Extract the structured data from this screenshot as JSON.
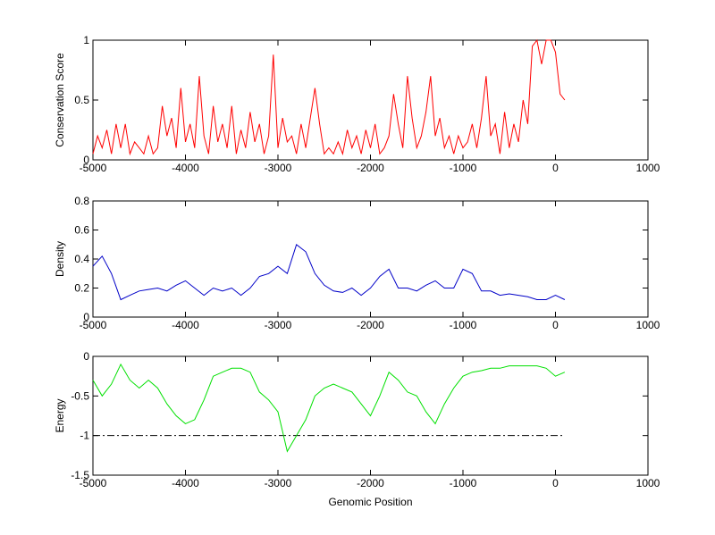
{
  "chart_data": [
    {
      "type": "line",
      "ylabel": "Conservation Score",
      "color": "#ff0000",
      "x": [
        -5000,
        -4950,
        -4900,
        -4850,
        -4800,
        -4750,
        -4700,
        -4650,
        -4600,
        -4550,
        -4500,
        -4450,
        -4400,
        -4350,
        -4300,
        -4250,
        -4200,
        -4150,
        -4100,
        -4050,
        -4000,
        -3950,
        -3900,
        -3850,
        -3800,
        -3750,
        -3700,
        -3650,
        -3600,
        -3550,
        -3500,
        -3450,
        -3400,
        -3350,
        -3300,
        -3250,
        -3200,
        -3150,
        -3100,
        -3050,
        -3000,
        -2950,
        -2900,
        -2850,
        -2800,
        -2750,
        -2700,
        -2650,
        -2600,
        -2550,
        -2500,
        -2450,
        -2400,
        -2350,
        -2300,
        -2250,
        -2200,
        -2150,
        -2100,
        -2050,
        -2000,
        -1950,
        -1900,
        -1850,
        -1800,
        -1750,
        -1700,
        -1650,
        -1600,
        -1550,
        -1500,
        -1450,
        -1400,
        -1350,
        -1300,
        -1250,
        -1200,
        -1150,
        -1100,
        -1050,
        -1000,
        -950,
        -900,
        -850,
        -800,
        -750,
        -700,
        -650,
        -600,
        -550,
        -500,
        -450,
        -400,
        -350,
        -300,
        -250,
        -200,
        -150,
        -100,
        -50,
        0,
        50,
        100
      ],
      "values": [
        0.05,
        0.2,
        0.1,
        0.25,
        0.05,
        0.3,
        0.1,
        0.3,
        0.05,
        0.15,
        0.1,
        0.05,
        0.2,
        0.05,
        0.1,
        0.45,
        0.2,
        0.35,
        0.1,
        0.6,
        0.15,
        0.3,
        0.1,
        0.7,
        0.2,
        0.05,
        0.45,
        0.15,
        0.3,
        0.1,
        0.45,
        0.05,
        0.25,
        0.1,
        0.4,
        0.15,
        0.3,
        0.05,
        0.2,
        0.88,
        0.1,
        0.35,
        0.15,
        0.2,
        0.05,
        0.3,
        0.1,
        0.35,
        0.6,
        0.3,
        0.05,
        0.1,
        0.05,
        0.15,
        0.05,
        0.25,
        0.1,
        0.2,
        0.05,
        0.25,
        0.1,
        0.3,
        0.05,
        0.1,
        0.2,
        0.55,
        0.3,
        0.1,
        0.7,
        0.35,
        0.1,
        0.2,
        0.4,
        0.7,
        0.2,
        0.35,
        0.1,
        0.2,
        0.05,
        0.2,
        0.1,
        0.15,
        0.3,
        0.1,
        0.35,
        0.7,
        0.2,
        0.3,
        0.05,
        0.4,
        0.1,
        0.3,
        0.15,
        0.5,
        0.3,
        0.95,
        1,
        0.8,
        1,
        1,
        0.9,
        0.55,
        0.5
      ],
      "xlim": [
        -5000,
        1000
      ],
      "xticks": [
        -5000,
        -4000,
        -3000,
        -2000,
        -1000,
        0,
        1000
      ],
      "ylim": [
        0,
        1
      ],
      "yticks": [
        0,
        0.5,
        1
      ]
    },
    {
      "type": "line",
      "ylabel": "Density",
      "color": "#0000c8",
      "x": [
        -5000,
        -4900,
        -4800,
        -4700,
        -4600,
        -4500,
        -4400,
        -4300,
        -4200,
        -4100,
        -4000,
        -3900,
        -3800,
        -3700,
        -3600,
        -3500,
        -3400,
        -3300,
        -3200,
        -3100,
        -3000,
        -2900,
        -2800,
        -2700,
        -2600,
        -2500,
        -2400,
        -2300,
        -2200,
        -2100,
        -2000,
        -1900,
        -1800,
        -1700,
        -1600,
        -1500,
        -1400,
        -1300,
        -1200,
        -1100,
        -1000,
        -900,
        -800,
        -700,
        -600,
        -500,
        -400,
        -300,
        -200,
        -100,
        0,
        100
      ],
      "values": [
        0.35,
        0.42,
        0.3,
        0.12,
        0.15,
        0.18,
        0.19,
        0.2,
        0.18,
        0.22,
        0.25,
        0.2,
        0.15,
        0.2,
        0.18,
        0.2,
        0.15,
        0.2,
        0.28,
        0.3,
        0.35,
        0.3,
        0.5,
        0.45,
        0.3,
        0.22,
        0.18,
        0.17,
        0.2,
        0.15,
        0.2,
        0.28,
        0.33,
        0.2,
        0.2,
        0.18,
        0.22,
        0.25,
        0.2,
        0.2,
        0.33,
        0.3,
        0.18,
        0.18,
        0.15,
        0.16,
        0.15,
        0.14,
        0.12,
        0.12,
        0.15,
        0.12
      ],
      "xlim": [
        -5000,
        1000
      ],
      "xticks": [
        -5000,
        -4000,
        -3000,
        -2000,
        -1000,
        0,
        1000
      ],
      "ylim": [
        0,
        0.8
      ],
      "yticks": [
        0,
        0.2,
        0.4,
        0.6,
        0.8
      ]
    },
    {
      "type": "line",
      "ylabel": "Energy",
      "xlabel": "Genomic Position",
      "color": "#00e000",
      "x": [
        -5000,
        -4900,
        -4800,
        -4700,
        -4600,
        -4500,
        -4400,
        -4300,
        -4200,
        -4100,
        -4000,
        -3900,
        -3800,
        -3700,
        -3600,
        -3500,
        -3400,
        -3300,
        -3200,
        -3100,
        -3000,
        -2900,
        -2800,
        -2700,
        -2600,
        -2500,
        -2400,
        -2300,
        -2200,
        -2100,
        -2000,
        -1900,
        -1800,
        -1700,
        -1600,
        -1500,
        -1400,
        -1300,
        -1200,
        -1100,
        -1000,
        -900,
        -800,
        -700,
        -600,
        -500,
        -400,
        -300,
        -200,
        -100,
        0,
        100
      ],
      "values": [
        -0.3,
        -0.5,
        -0.35,
        -0.1,
        -0.3,
        -0.4,
        -0.3,
        -0.4,
        -0.6,
        -0.75,
        -0.85,
        -0.8,
        -0.55,
        -0.25,
        -0.2,
        -0.15,
        -0.15,
        -0.2,
        -0.45,
        -0.55,
        -0.7,
        -1.2,
        -1,
        -0.8,
        -0.5,
        -0.4,
        -0.35,
        -0.4,
        -0.45,
        -0.6,
        -0.75,
        -0.5,
        -0.2,
        -0.3,
        -0.45,
        -0.5,
        -0.7,
        -0.85,
        -0.6,
        -0.4,
        -0.25,
        -0.2,
        -0.18,
        -0.15,
        -0.15,
        -0.12,
        -0.12,
        -0.12,
        -0.12,
        -0.15,
        -0.25,
        -0.2
      ],
      "reference_line": {
        "x": [
          -5000,
          100
        ],
        "y": -1
      },
      "xlim": [
        -5000,
        1000
      ],
      "xticks": [
        -5000,
        -4000,
        -3000,
        -2000,
        -1000,
        0,
        1000
      ],
      "ylim": [
        -1.5,
        0
      ],
      "yticks": [
        -1.5,
        -1,
        -0.5,
        0
      ]
    }
  ]
}
